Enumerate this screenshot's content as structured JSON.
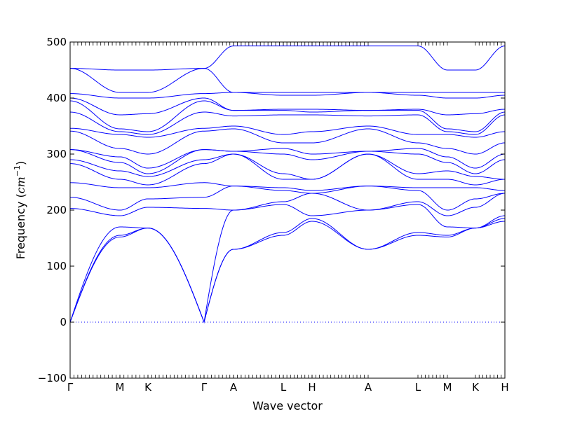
{
  "chart_data": {
    "type": "line",
    "title": "",
    "xlabel": "Wave vector",
    "ylabel_prefix": "Frequency (",
    "ylabel_unit": "cm",
    "ylabel_exponent": "−1",
    "ylabel_suffix": ")",
    "ylim": [
      -100,
      500
    ],
    "yticks": [
      -100,
      0,
      100,
      200,
      300,
      400,
      500
    ],
    "grid": false,
    "line_color": "#0000ff",
    "zero_line": {
      "value": 0,
      "style": "dotted",
      "color": "#0000ff"
    },
    "kpoints": [
      {
        "label": "Γ",
        "k": 0.0
      },
      {
        "label": "M",
        "k": 0.71
      },
      {
        "label": "K",
        "k": 1.11
      },
      {
        "label": "Γ",
        "k": 1.91
      },
      {
        "label": "A",
        "k": 2.33
      },
      {
        "label": "L",
        "k": 3.04
      },
      {
        "label": "H",
        "k": 3.45
      },
      {
        "label": "A",
        "k": 4.25
      },
      {
        "label": "L",
        "k": 4.96
      },
      {
        "label": "M",
        "k": 5.38
      },
      {
        "label": "K",
        "k": 5.78
      },
      {
        "label": "H",
        "k": 6.2
      }
    ],
    "acoustic_bands": 3,
    "bands": [
      [
        0,
        152,
        168,
        0,
        130,
        155,
        180,
        130,
        155,
        152,
        168,
        180
      ],
      [
        0,
        155,
        168,
        0,
        130,
        160,
        185,
        130,
        160,
        155,
        168,
        185
      ],
      [
        0,
        170,
        168,
        0,
        200,
        210,
        190,
        200,
        210,
        170,
        168,
        190
      ],
      [
        203,
        190,
        205,
        203,
        200,
        215,
        230,
        200,
        215,
        190,
        205,
        230
      ],
      [
        223,
        200,
        220,
        223,
        243,
        235,
        230,
        243,
        235,
        200,
        220,
        230
      ],
      [
        249,
        240,
        240,
        249,
        243,
        240,
        235,
        243,
        240,
        240,
        240,
        235
      ],
      [
        283,
        255,
        245,
        283,
        300,
        255,
        255,
        300,
        255,
        255,
        245,
        255
      ],
      [
        290,
        270,
        260,
        290,
        300,
        265,
        255,
        300,
        265,
        270,
        260,
        255
      ],
      [
        308,
        285,
        265,
        308,
        305,
        300,
        290,
        305,
        300,
        285,
        265,
        290
      ],
      [
        308,
        295,
        275,
        308,
        305,
        310,
        300,
        305,
        310,
        295,
        275,
        300
      ],
      [
        341,
        310,
        300,
        341,
        345,
        320,
        320,
        345,
        320,
        310,
        300,
        320
      ],
      [
        346,
        335,
        330,
        346,
        350,
        335,
        340,
        350,
        335,
        335,
        330,
        340
      ],
      [
        375,
        340,
        335,
        375,
        368,
        370,
        370,
        368,
        370,
        340,
        335,
        370
      ],
      [
        395,
        345,
        340,
        395,
        378,
        378,
        375,
        378,
        378,
        345,
        340,
        375
      ],
      [
        400,
        370,
        372,
        400,
        378,
        380,
        380,
        378,
        380,
        370,
        372,
        380
      ],
      [
        408,
        400,
        400,
        408,
        410,
        405,
        405,
        410,
        405,
        400,
        400,
        405
      ],
      [
        453,
        410,
        410,
        453,
        410,
        410,
        410,
        410,
        410,
        410,
        410,
        410
      ],
      [
        453,
        450,
        450,
        453,
        493,
        493,
        493,
        493,
        493,
        450,
        450,
        493
      ]
    ]
  }
}
